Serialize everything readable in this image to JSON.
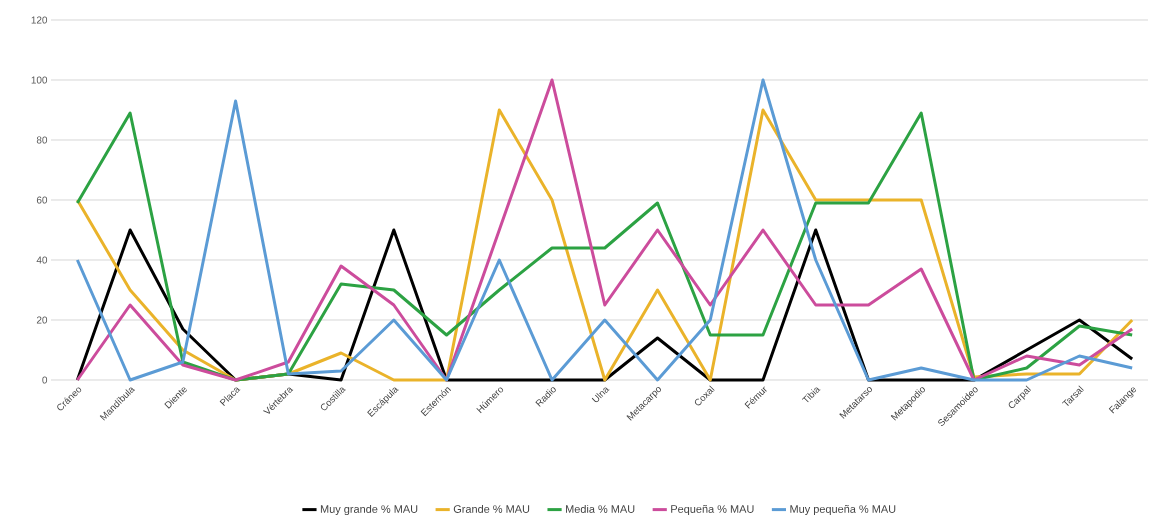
{
  "chart_data": {
    "type": "line",
    "categories": [
      "Cráneo",
      "Mandíbula",
      "Diente",
      "Placa",
      "Vértebra",
      "Costilla",
      "Escápula",
      "Esternón",
      "Húmero",
      "Radio",
      "Ulna",
      "Metacarpo",
      "Coxal",
      "Fémur",
      "Tibia",
      "Metatarso",
      "Metapodio",
      "Sesamoideo",
      "Carpal",
      "Tarsal",
      "Falange"
    ],
    "series": [
      {
        "name": "Muy grande % MAU",
        "color": "#000000",
        "values": [
          0,
          50,
          17,
          0,
          2,
          0,
          50,
          0,
          0,
          0,
          0,
          14,
          0,
          0,
          50,
          0,
          0,
          0,
          10,
          20,
          7
        ]
      },
      {
        "name": "Grande % MAU",
        "color": "#eab32a",
        "values": [
          60,
          30,
          10,
          0,
          2,
          9,
          0,
          0,
          90,
          60,
          0,
          30,
          0,
          90,
          60,
          60,
          60,
          1,
          2,
          2,
          20
        ]
      },
      {
        "name": "Media % MAU",
        "color": "#2ca243",
        "values": [
          59,
          89,
          6,
          0,
          2,
          32,
          30,
          15,
          30,
          44,
          44,
          59,
          15,
          15,
          59,
          59,
          89,
          0,
          4,
          18,
          15
        ]
      },
      {
        "name": "Pequeña % MAU",
        "color": "#cc4c9c",
        "values": [
          0,
          25,
          5,
          0,
          6,
          38,
          25,
          0,
          50,
          100,
          25,
          50,
          25,
          50,
          25,
          25,
          37,
          0,
          8,
          5,
          17
        ]
      },
      {
        "name": "Muy pequeña % MAU",
        "color": "#5b9bd5",
        "values": [
          40,
          0,
          6,
          93,
          2,
          3,
          20,
          0,
          40,
          0,
          20,
          0,
          20,
          100,
          40,
          0,
          4,
          0,
          0,
          8,
          4
        ]
      }
    ],
    "ylim": [
      0,
      120
    ],
    "yticks": [
      0,
      20,
      40,
      60,
      80,
      100,
      120
    ],
    "grid": "y",
    "legend": "bottom",
    "marker": "none",
    "line_style": "solid"
  }
}
